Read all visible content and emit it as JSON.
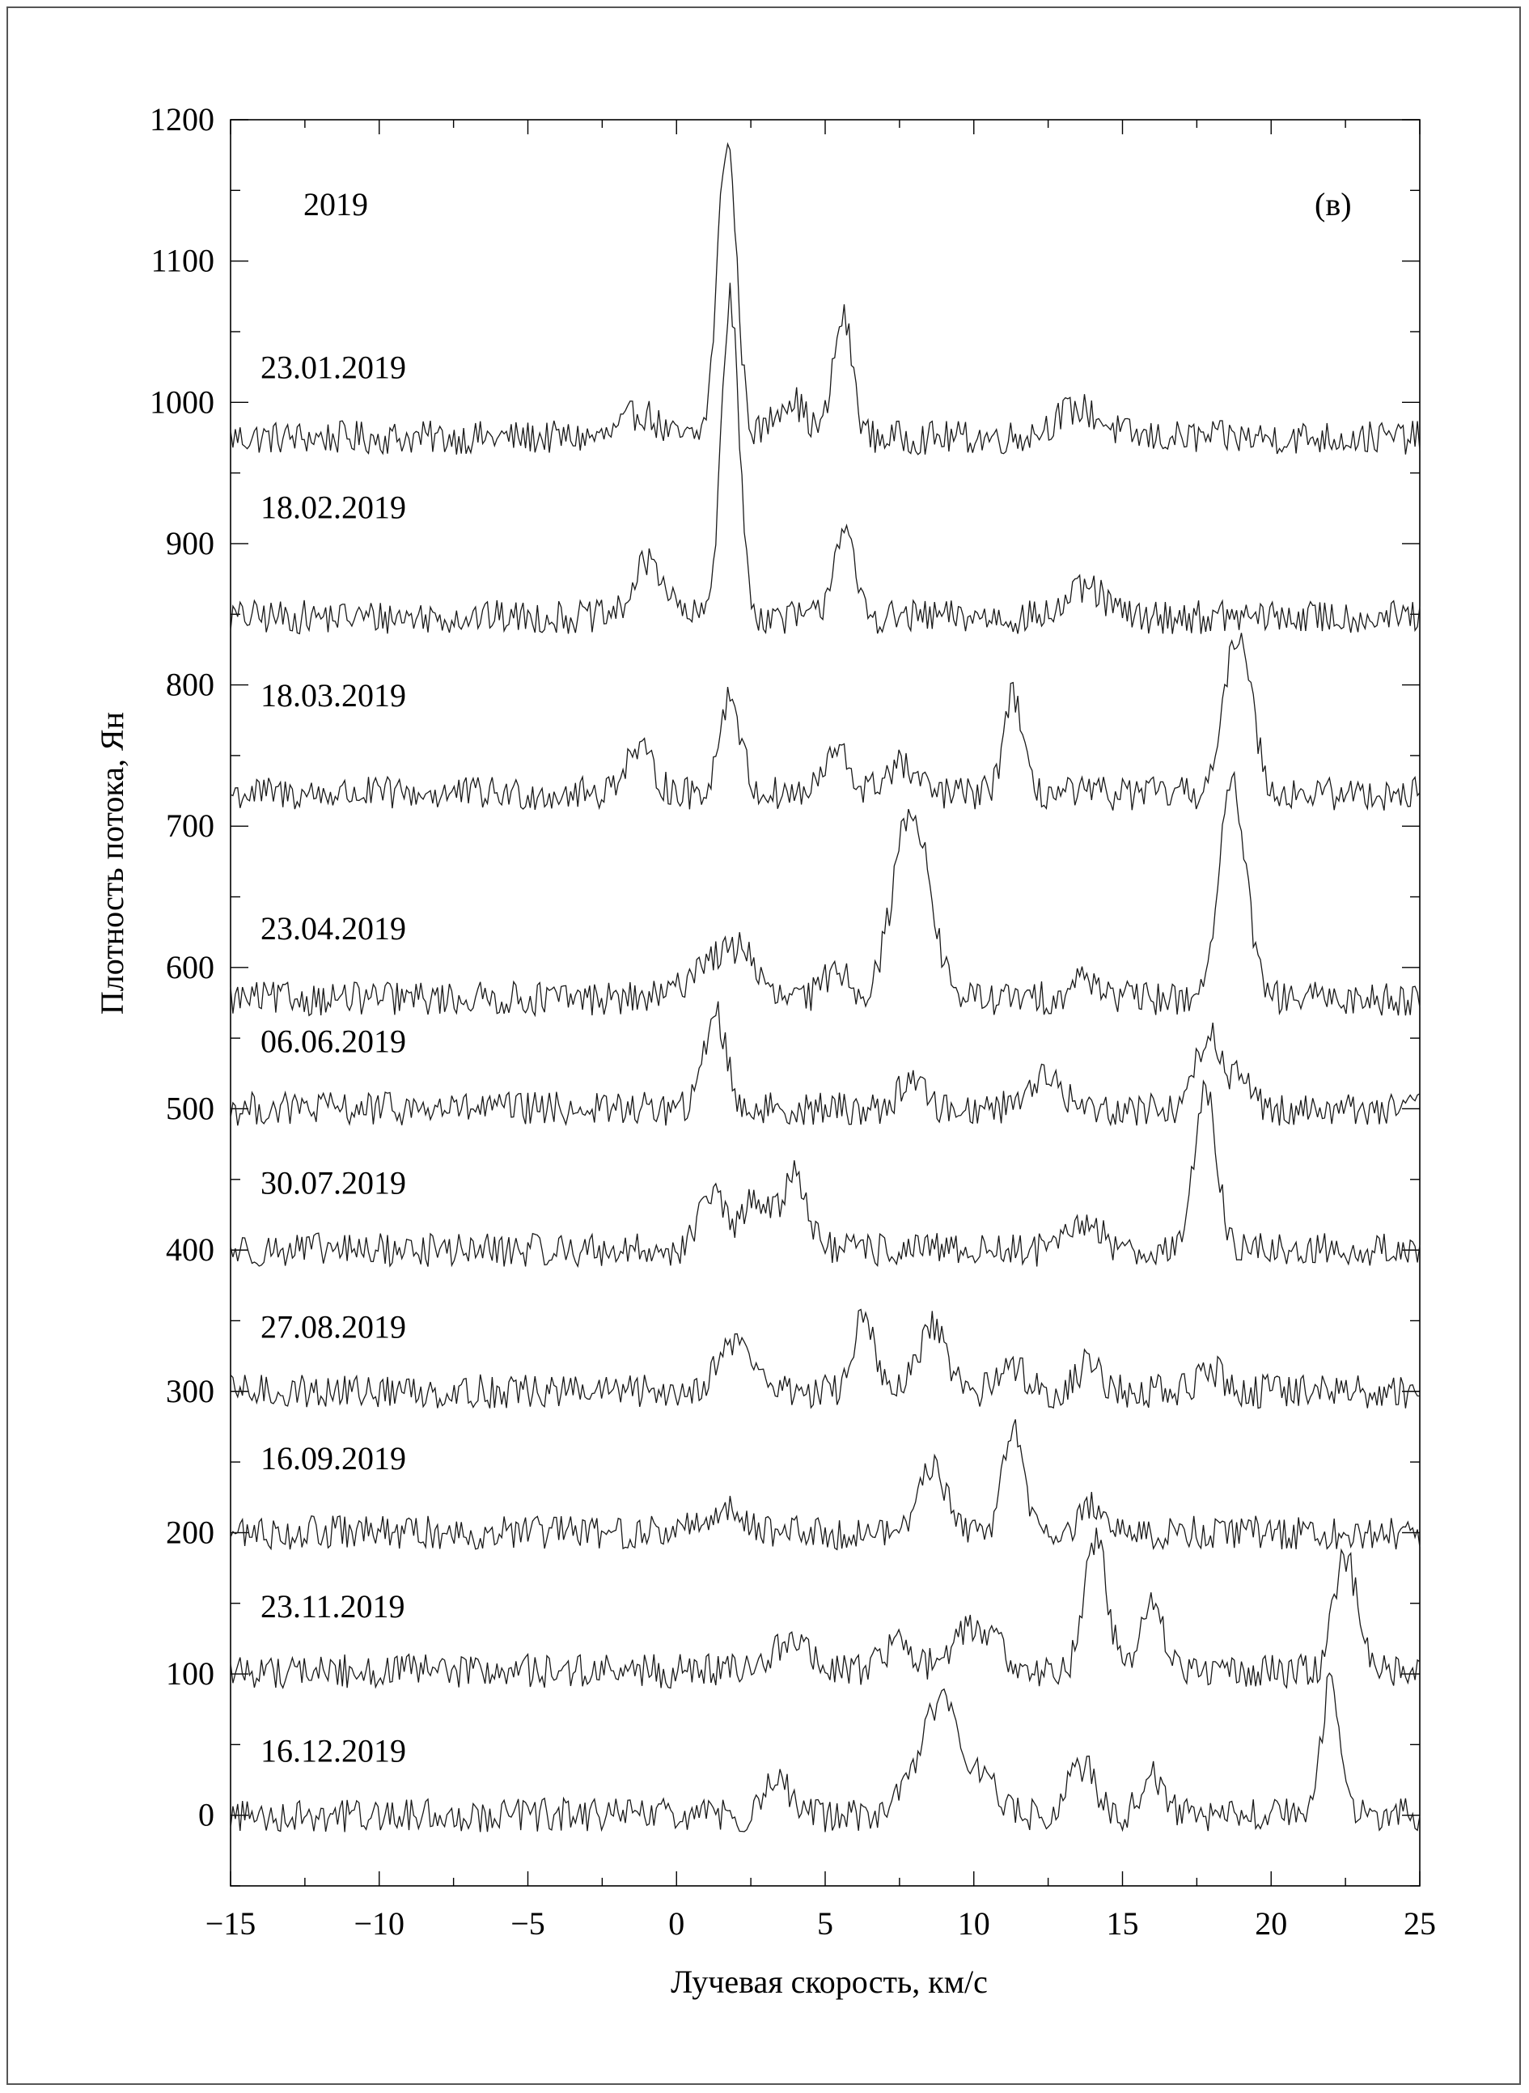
{
  "chart_data": {
    "type": "line",
    "year_label": "2019",
    "panel_label": "(в)",
    "xlabel": "Лучевая скорость, км/с",
    "ylabel": "Плотность потока, Ян",
    "xlim": [
      -15,
      25
    ],
    "ylim": [
      -50,
      1200
    ],
    "x_ticks": [
      {
        "v": -15,
        "label": "−15"
      },
      {
        "v": -10,
        "label": "−10"
      },
      {
        "v": -5,
        "label": "−5"
      },
      {
        "v": 0,
        "label": "0"
      },
      {
        "v": 5,
        "label": "5"
      },
      {
        "v": 10,
        "label": "10"
      },
      {
        "v": 15,
        "label": "15"
      },
      {
        "v": 20,
        "label": "20"
      },
      {
        "v": 25,
        "label": "25"
      }
    ],
    "y_ticks": [
      {
        "v": 0,
        "label": "0"
      },
      {
        "v": 100,
        "label": "100"
      },
      {
        "v": 200,
        "label": "200"
      },
      {
        "v": 300,
        "label": "300"
      },
      {
        "v": 400,
        "label": "400"
      },
      {
        "v": 500,
        "label": "500"
      },
      {
        "v": 600,
        "label": "600"
      },
      {
        "v": 700,
        "label": "700"
      },
      {
        "v": 800,
        "label": "800"
      },
      {
        "v": 900,
        "label": "900"
      },
      {
        "v": 1000,
        "label": "1000"
      },
      {
        "v": 1100,
        "label": "1100"
      },
      {
        "v": 1200,
        "label": "1200"
      }
    ],
    "noise_amplitude": 12,
    "series": [
      {
        "name": "23.01.2019",
        "baseline": 975,
        "label_y": 1017,
        "peaks": [
          [
            1.7,
            210,
            0.32
          ],
          [
            5.6,
            85,
            0.32
          ],
          [
            3.8,
            28,
            0.5
          ],
          [
            -1.2,
            18,
            0.5
          ],
          [
            13.5,
            20,
            0.8
          ]
        ]
      },
      {
        "name": "18.02.2019",
        "baseline": 848,
        "label_y": 918,
        "peaks": [
          [
            1.8,
            225,
            0.3
          ],
          [
            5.6,
            62,
            0.35
          ],
          [
            -0.9,
            40,
            0.5
          ],
          [
            13.8,
            20,
            0.6
          ]
        ]
      },
      {
        "name": "18.03.2019",
        "baseline": 723,
        "label_y": 785,
        "peaks": [
          [
            1.8,
            70,
            0.35
          ],
          [
            11.3,
            72,
            0.3
          ],
          [
            18.9,
            115,
            0.45
          ],
          [
            5.4,
            30,
            0.4
          ],
          [
            -1.3,
            30,
            0.5
          ],
          [
            7.5,
            20,
            0.5
          ]
        ]
      },
      {
        "name": "23.04.2019",
        "baseline": 578,
        "label_y": 620,
        "peaks": [
          [
            7.9,
            135,
            0.6
          ],
          [
            18.7,
            150,
            0.45
          ],
          [
            1.2,
            30,
            0.7
          ],
          [
            2.3,
            28,
            0.4
          ],
          [
            5.4,
            22,
            0.4
          ],
          [
            13.8,
            15,
            0.5
          ]
        ]
      },
      {
        "name": "06.06.2019",
        "baseline": 500,
        "label_y": 540,
        "peaks": [
          [
            1.3,
            70,
            0.35
          ],
          [
            17.9,
            55,
            0.4
          ],
          [
            19.0,
            28,
            0.3
          ],
          [
            7.9,
            22,
            0.4
          ],
          [
            12.3,
            22,
            0.6
          ]
        ]
      },
      {
        "name": "30.07.2019",
        "baseline": 400,
        "label_y": 440,
        "peaks": [
          [
            17.8,
            110,
            0.38
          ],
          [
            4.0,
            55,
            0.4
          ],
          [
            1.2,
            42,
            0.4
          ],
          [
            2.7,
            38,
            0.45
          ],
          [
            13.8,
            20,
            0.5
          ]
        ]
      },
      {
        "name": "27.08.2019",
        "baseline": 300,
        "label_y": 338,
        "peaks": [
          [
            6.3,
            60,
            0.3
          ],
          [
            8.6,
            45,
            0.45
          ],
          [
            2.0,
            35,
            0.6
          ],
          [
            11.3,
            20,
            0.4
          ],
          [
            13.9,
            22,
            0.35
          ],
          [
            18.0,
            15,
            0.4
          ]
        ]
      },
      {
        "name": "16.09.2019",
        "baseline": 200,
        "label_y": 245,
        "peaks": [
          [
            11.3,
            78,
            0.33
          ],
          [
            8.6,
            48,
            0.45
          ],
          [
            1.6,
            15,
            0.8
          ],
          [
            14.0,
            20,
            0.4
          ]
        ]
      },
      {
        "name": "23.11.2019",
        "baseline": 102,
        "label_y": 140,
        "peaks": [
          [
            14.1,
            95,
            0.38
          ],
          [
            16.0,
            45,
            0.4
          ],
          [
            22.5,
            82,
            0.38
          ],
          [
            10.1,
            32,
            0.7
          ],
          [
            3.8,
            22,
            0.6
          ],
          [
            7.5,
            20,
            0.5
          ]
        ]
      },
      {
        "name": "16.12.2019",
        "baseline": 0,
        "label_y": 38,
        "peaks": [
          [
            8.9,
            80,
            0.75
          ],
          [
            22.0,
            95,
            0.3
          ],
          [
            13.6,
            35,
            0.5
          ],
          [
            16.0,
            30,
            0.35
          ],
          [
            3.4,
            30,
            0.35
          ],
          [
            10.5,
            18,
            0.4
          ]
        ]
      }
    ]
  }
}
